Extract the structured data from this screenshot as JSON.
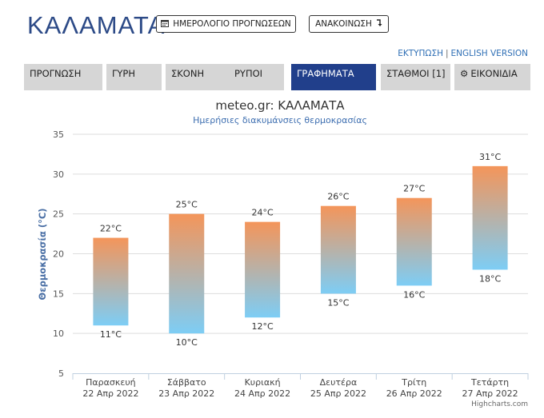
{
  "page": {
    "title": "ΚΑΛΑΜΑΤΑ"
  },
  "header": {
    "calendar_button": "ΗΜΕΡΟΛΟΓΙΟ ΠΡΟΓΝΩΣΕΩΝ",
    "calendar_icon": "calendar-icon",
    "announcement_button": "ΑΝΑΚΟΙΝΩΣΗ",
    "announcement_icon": "arrow-down-icon"
  },
  "links": {
    "print": "ΕΚΤΥΠΩΣΗ",
    "separator": "|",
    "english": "ENGLISH VERSION"
  },
  "tabs": [
    {
      "label": "ΠΡΟΓΝΩΣΗ",
      "active": false
    },
    {
      "label": "ΓΥΡΗ",
      "active": false
    },
    {
      "label": "ΣΚΟΝΗ",
      "active": false
    },
    {
      "label": "ΡΥΠΟΙ",
      "active": false
    },
    {
      "label": "ΓΡΑΦΗΜΑΤΑ",
      "active": true
    },
    {
      "label": "ΣΤΑΘΜΟΙ [1]",
      "active": false
    },
    {
      "label": "ΕΙΚΟΝΙΔΙΑ",
      "active": false,
      "icon": "gear-icon"
    }
  ],
  "chart_data": {
    "type": "bar",
    "title": "meteo.gr: ΚΑΛΑΜΑΤΑ",
    "subtitle": "Ημερήσιες διακυμάνσεις θερμοκρασίας",
    "ylabel": "Θερμοκρασία (°C)",
    "ylim": [
      5,
      35
    ],
    "yticks": [
      5,
      10,
      15,
      20,
      25,
      30,
      35
    ],
    "grid": true,
    "categories": [
      {
        "day": "Παρασκευή",
        "date": "22 Απρ 2022"
      },
      {
        "day": "Σάββατο",
        "date": "23 Απρ 2022"
      },
      {
        "day": "Κυριακή",
        "date": "24 Απρ 2022"
      },
      {
        "day": "Δευτέρα",
        "date": "25 Απρ 2022"
      },
      {
        "day": "Τρίτη",
        "date": "26 Απρ 2022"
      },
      {
        "day": "Τετάρτη",
        "date": "27 Απρ 2022"
      }
    ],
    "series": [
      {
        "low": 11,
        "high": 22,
        "low_label": "11°C",
        "high_label": "22°C"
      },
      {
        "low": 10,
        "high": 25,
        "low_label": "10°C",
        "high_label": "25°C"
      },
      {
        "low": 12,
        "high": 24,
        "low_label": "12°C",
        "high_label": "24°C"
      },
      {
        "low": 15,
        "high": 26,
        "low_label": "15°C",
        "high_label": "26°C"
      },
      {
        "low": 16,
        "high": 27,
        "low_label": "16°C",
        "high_label": "27°C"
      },
      {
        "low": 18,
        "high": 31,
        "low_label": "18°C",
        "high_label": "31°C"
      }
    ],
    "colors": {
      "high": "#f4955a",
      "low": "#7dcdf5",
      "grid": "#dddddd",
      "title": "#333333",
      "subtitle": "#3d6eb0",
      "ylabel": "#4a6fa5"
    },
    "credits": "Highcharts.com"
  }
}
